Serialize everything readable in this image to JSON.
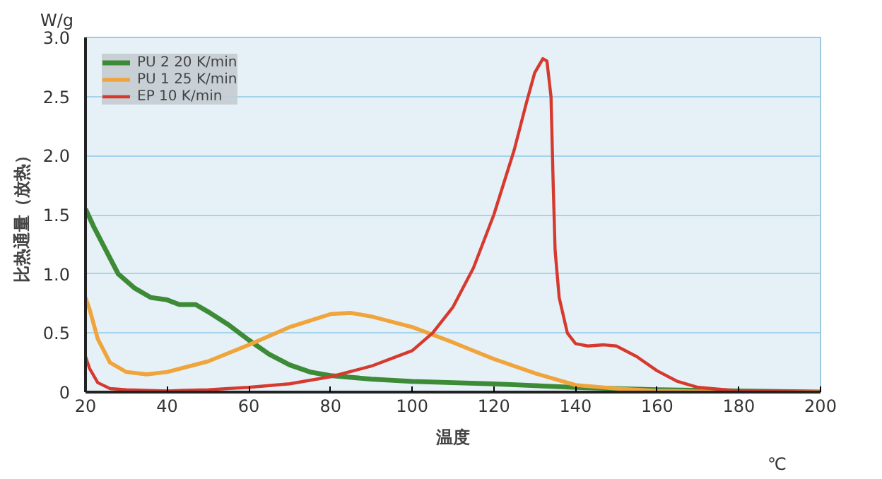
{
  "chart_data": {
    "type": "line",
    "xlabel": "温度",
    "ylabel": "比热通量（放热）",
    "annotations": [
      "W/g",
      "℃"
    ],
    "xlim": [
      20,
      200
    ],
    "ylim": [
      0,
      3.0
    ],
    "xticks": [
      20,
      40,
      60,
      80,
      100,
      120,
      140,
      160,
      180,
      200
    ],
    "yticks": [
      {
        "value": 0,
        "label": "0"
      },
      0.5,
      {
        "value": 1,
        "label": "1.0"
      },
      1.5,
      {
        "value": 2,
        "label": "2.0"
      },
      2.5,
      {
        "value": 3,
        "label": "3.0"
      }
    ],
    "grid": "y",
    "legend": "top left",
    "line_style": "solid",
    "marker": "none",
    "series": [
      {
        "name": "PU 2 20 K/min",
        "color": "#3d8b37",
        "x": [
          20,
          22,
          25,
          28,
          32,
          36,
          40,
          43,
          47,
          50,
          55,
          60,
          65,
          70,
          75,
          80,
          90,
          100,
          120,
          140,
          160,
          180,
          200
        ],
        "values": [
          1.55,
          1.4,
          1.2,
          1.0,
          0.88,
          0.8,
          0.78,
          0.74,
          0.74,
          0.68,
          0.57,
          0.44,
          0.32,
          0.23,
          0.17,
          0.14,
          0.11,
          0.09,
          0.07,
          0.04,
          0.02,
          0.01,
          0
        ]
      },
      {
        "name": "PU 1 25 K/min",
        "color": "#f0a43c",
        "x": [
          20,
          21,
          23,
          26,
          30,
          35,
          40,
          50,
          60,
          70,
          80,
          85,
          90,
          100,
          110,
          120,
          130,
          140,
          150,
          160,
          180,
          200
        ],
        "values": [
          0.8,
          0.7,
          0.45,
          0.25,
          0.17,
          0.15,
          0.17,
          0.26,
          0.4,
          0.55,
          0.66,
          0.67,
          0.64,
          0.55,
          0.42,
          0.28,
          0.16,
          0.06,
          0.03,
          0.01,
          0,
          0
        ]
      },
      {
        "name": "EP 10 K/min",
        "color": "#d63a2f",
        "x": [
          20,
          21,
          23,
          26,
          30,
          40,
          50,
          60,
          70,
          80,
          90,
          100,
          105,
          110,
          115,
          120,
          125,
          128,
          130,
          132,
          133,
          134,
          134.5,
          135,
          136,
          138,
          140,
          143,
          147,
          150,
          155,
          160,
          165,
          170,
          180,
          200
        ],
        "values": [
          0.3,
          0.2,
          0.08,
          0.03,
          0.02,
          0.01,
          0.02,
          0.04,
          0.07,
          0.13,
          0.22,
          0.35,
          0.5,
          0.72,
          1.05,
          1.5,
          2.05,
          2.45,
          2.7,
          2.82,
          2.8,
          2.5,
          1.8,
          1.2,
          0.8,
          0.5,
          0.41,
          0.39,
          0.4,
          0.39,
          0.3,
          0.18,
          0.09,
          0.04,
          0.01,
          0
        ]
      }
    ]
  }
}
